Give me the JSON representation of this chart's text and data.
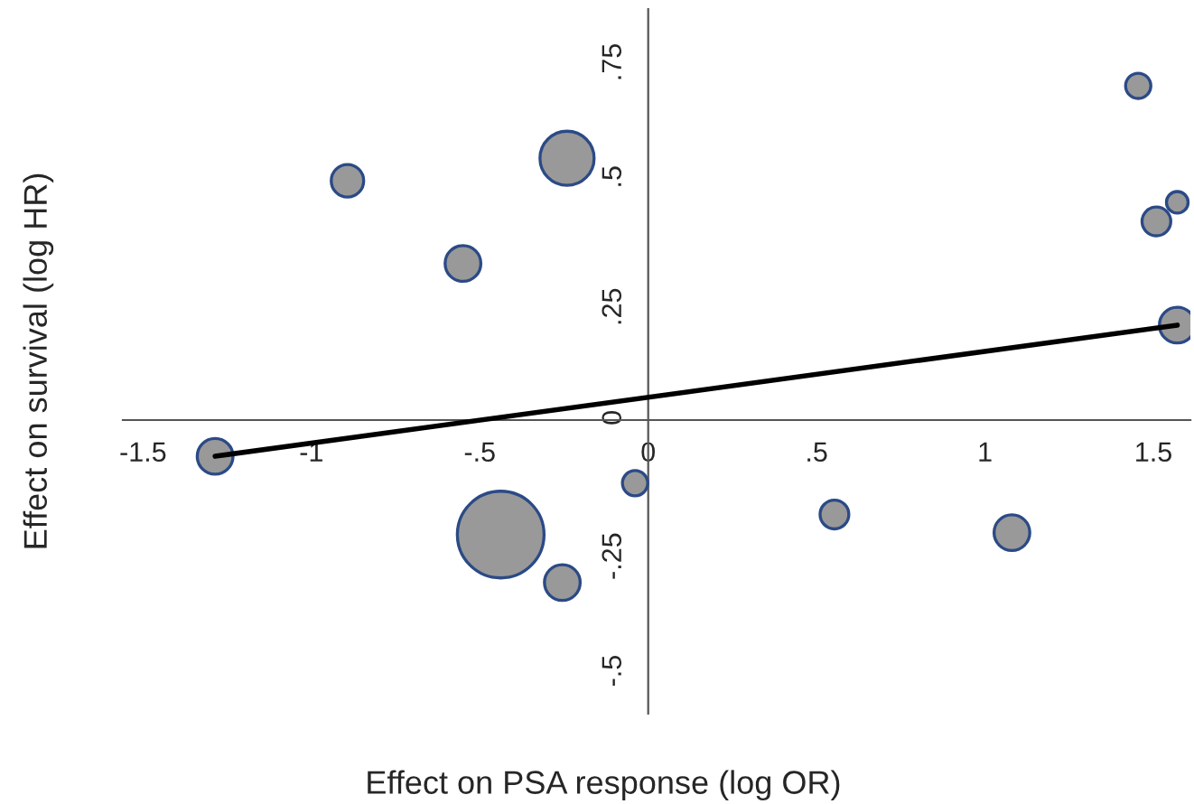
{
  "chart_data": {
    "type": "bubble",
    "xlabel": "Effect on PSA response (log OR)",
    "ylabel": "Effect on survival (log HR)",
    "xlim": [
      -1.56,
      1.61
    ],
    "ylim": [
      -0.6,
      0.84
    ],
    "xticks": [
      {
        "value": -1.5,
        "label": "-1.5"
      },
      {
        "value": -1,
        "label": "-1"
      },
      {
        "value": -0.5,
        "label": "-.5"
      },
      {
        "value": 0,
        "label": "0"
      },
      {
        "value": 0.5,
        "label": ".5"
      },
      {
        "value": 1,
        "label": "1"
      },
      {
        "value": 1.5,
        "label": "1.5"
      }
    ],
    "yticks": [
      {
        "value": -0.5,
        "label": "-.5"
      },
      {
        "value": -0.25,
        "label": "-.25"
      },
      {
        "value": 0,
        "label": "0"
      },
      {
        "value": 0.25,
        "label": ".25"
      },
      {
        "value": 0.5,
        "label": ".5"
      },
      {
        "value": 0.75,
        "label": ".75"
      }
    ],
    "grid": false,
    "series": [
      {
        "type": "bubble",
        "color": "#999999",
        "x": [
          -1.286,
          -0.893,
          -0.241,
          -0.55,
          -0.039,
          -0.438,
          -0.255,
          1.455,
          1.571,
          1.509,
          1.571,
          0.553,
          1.08
        ],
        "values": [
          -0.074,
          0.489,
          0.535,
          0.32,
          -0.129,
          -0.234,
          -0.332,
          0.683,
          0.445,
          0.406,
          0.194,
          -0.193,
          -0.23
        ],
        "sizes": [
          0.17,
          0.14,
          0.39,
          0.17,
          0.085,
          1,
          0.17,
          0.085,
          0.0625,
          0.11,
          0.17,
          0.11,
          0.17
        ]
      },
      {
        "type": "line",
        "color": "#000000",
        "x": [
          -1.286,
          1.571
        ],
        "values": [
          -0.074,
          0.194
        ]
      }
    ]
  }
}
